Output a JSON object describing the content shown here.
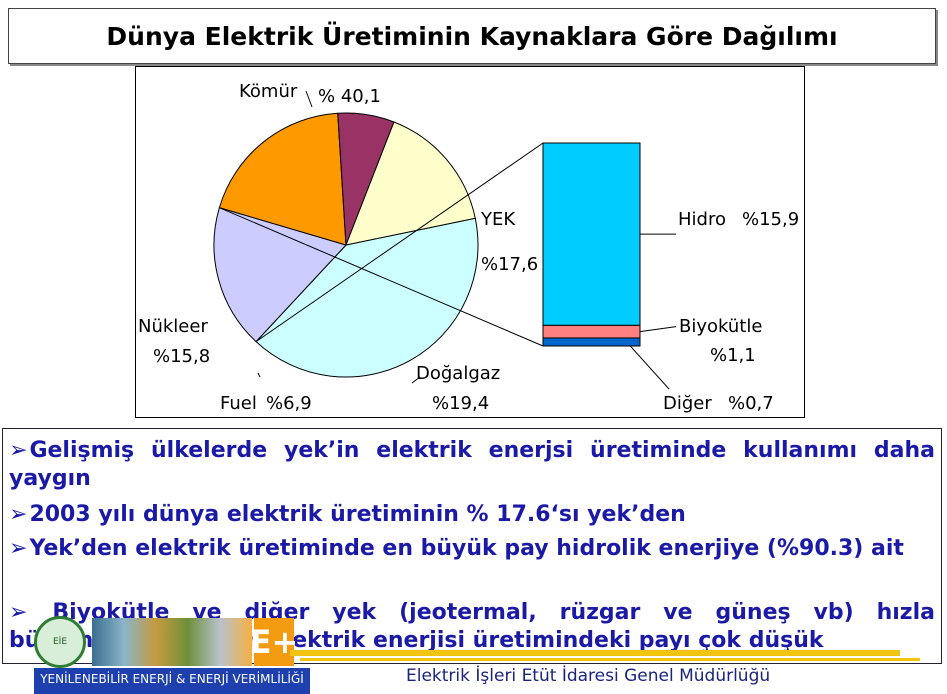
{
  "title": "Dünya Elektrik Üretiminin Kaynaklara Göre Dağılımı",
  "chart_data": {
    "type": "pie",
    "slices": [
      {
        "name": "Kömür",
        "label": "% 40,1",
        "value": 40.1,
        "color": "#ccffff"
      },
      {
        "name": "YEK",
        "label": "%17,6",
        "value": 17.6,
        "color": "#ccccff"
      },
      {
        "name": "Doğalgaz",
        "label": "%19,4",
        "value": 19.4,
        "color": "#ff9900"
      },
      {
        "name": "Fuel",
        "label": "%6,9",
        "value": 6.9,
        "color": "#993366"
      },
      {
        "name": "Nükleer",
        "label": "%15,8",
        "value": 15.8,
        "color": "#ffffcc"
      }
    ],
    "breakdown": {
      "of": "YEK",
      "segments": [
        {
          "name": "Hidro",
          "label": "%15,9",
          "value": 15.9,
          "color": "#00ccff"
        },
        {
          "name": "Biyokütle",
          "label": "%1,1",
          "value": 1.1,
          "color": "#ff8080"
        },
        {
          "name": "Diğer",
          "label": "%0,7",
          "value": 0.7,
          "color": "#0066cc"
        }
      ]
    }
  },
  "bullets": [
    "Gelişmiş ülkelerde yek’in  elektrik enerjsi üretiminde kullanımı daha yaygın",
    "2003 yılı dünya elektrik üretiminin % 17.6‘sı yek’den",
    "Yek’den elektrik üretiminde en büyük pay hidrolik enerjiye (%90.3) ait",
    " Biyokütle ve diğer yek (jeotermal, rüzgar ve güneş vb) hızla büyümesine rağmen elektrik enerjisi üretimindeki payı çok düşük"
  ],
  "bullet_marker": "➢",
  "footer": {
    "logo_text": "EİE",
    "logo_letter": "E+",
    "band_text": "YENİLENEBİLİR ENERJİ &  ENERJİ VERİMLİLİĞİ",
    "organization": "Elektrik İşleri Etüt İdaresi Genel Müdürlüğü"
  }
}
